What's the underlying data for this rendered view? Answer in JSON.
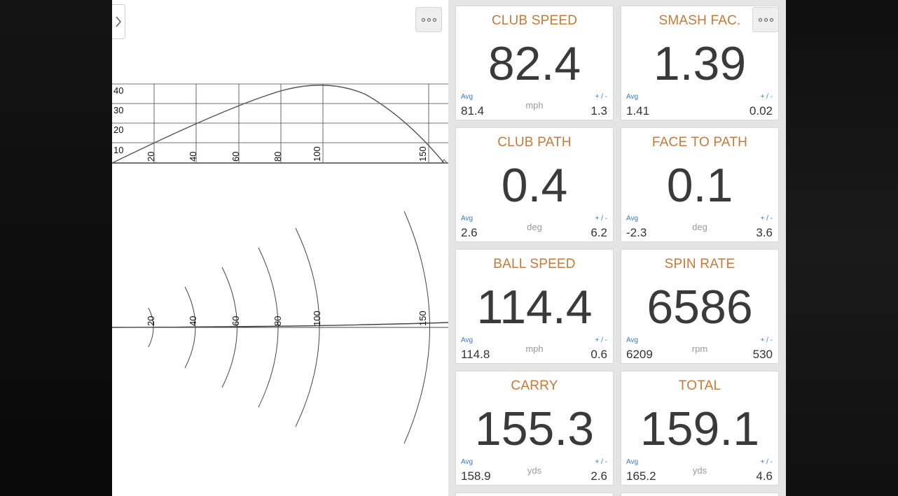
{
  "trace": {
    "side_view": {
      "y_labels": [
        "40",
        "30",
        "20",
        "10"
      ],
      "x_labels": [
        "20",
        "40",
        "60",
        "80",
        "100",
        "150"
      ]
    },
    "top_view": {
      "x_labels": [
        "20",
        "40",
        "60",
        "80",
        "100",
        "150"
      ]
    }
  },
  "tiles": [
    {
      "title": "CLUB SPEED",
      "value": "82.4",
      "unit": "mph",
      "avg_label": "Avg",
      "avg": "81.4",
      "pm_label": "+ / -",
      "pm": "1.3"
    },
    {
      "title": "SMASH FAC.",
      "value": "1.39",
      "unit": "",
      "avg_label": "Avg",
      "avg": "1.41",
      "pm_label": "+ / -",
      "pm": "0.02"
    },
    {
      "title": "CLUB PATH",
      "value": "0.4",
      "unit": "deg",
      "avg_label": "Avg",
      "avg": "2.6",
      "pm_label": "+ / -",
      "pm": "6.2"
    },
    {
      "title": "FACE TO PATH",
      "value": "0.1",
      "unit": "deg",
      "avg_label": "Avg",
      "avg": "-2.3",
      "pm_label": "+ / -",
      "pm": "3.6"
    },
    {
      "title": "BALL SPEED",
      "value": "114.4",
      "unit": "mph",
      "avg_label": "Avg",
      "avg": "114.8",
      "pm_label": "+ / -",
      "pm": "0.6"
    },
    {
      "title": "SPIN RATE",
      "value": "6586",
      "unit": "rpm",
      "avg_label": "Avg",
      "avg": "6209",
      "pm_label": "+ / -",
      "pm": "530"
    },
    {
      "title": "CARRY",
      "value": "155.3",
      "unit": "yds",
      "avg_label": "Avg",
      "avg": "158.9",
      "pm_label": "+ / -",
      "pm": "2.6"
    },
    {
      "title": "TOTAL",
      "value": "159.1",
      "unit": "yds",
      "avg_label": "Avg",
      "avg": "165.2",
      "pm_label": "+ / -",
      "pm": "4.6"
    }
  ],
  "icons": {
    "expand": "chevron-right-icon",
    "more": "more-options-icon"
  },
  "colors": {
    "tile_title": "#c57a3a",
    "avg_label": "#3a7ac8",
    "value": "#3a3a3a",
    "background": "#0c0c0c"
  }
}
